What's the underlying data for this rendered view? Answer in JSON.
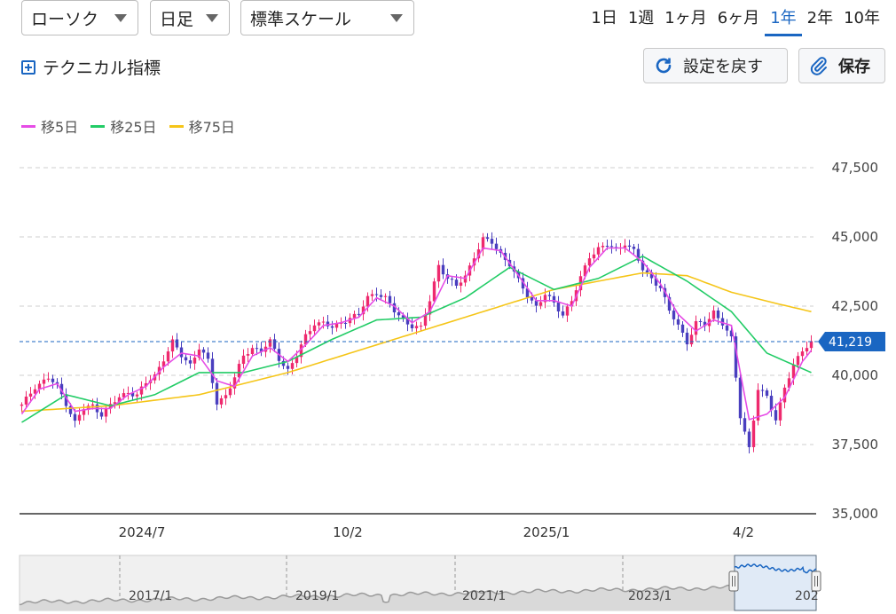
{
  "toolbar": {
    "chart_type": "ローソク",
    "period": "日足",
    "scale": "標準スケール",
    "ranges": [
      "1日",
      "1週",
      "1ヶ月",
      "6ヶ月",
      "1年",
      "2年",
      "10年"
    ],
    "active_range": "1年",
    "technical_label": "テクニカル指標",
    "reset_label": "設定を戻す",
    "save_label": "保存"
  },
  "colors": {
    "accent": "#1a66c2",
    "up": "#ee2a6e",
    "down": "#4a3fbf",
    "ma5": "#e64ce6",
    "ma25": "#22cc66",
    "ma75": "#f5c518"
  },
  "chart_data": {
    "type": "candlestick",
    "legend": [
      {
        "name": "移5日",
        "color": "#e64ce6"
      },
      {
        "name": "移25日",
        "color": "#22cc66"
      },
      {
        "name": "移75日",
        "color": "#f5c518"
      }
    ],
    "y_ticks": [
      "47,500",
      "45,000",
      "42,500",
      "40,000",
      "37,500",
      "35,000"
    ],
    "y_tick_values": [
      47500,
      45000,
      42500,
      40000,
      37500,
      35000
    ],
    "ylim": [
      35000,
      48500
    ],
    "x_ticks": [
      "2024/7",
      "10/2",
      "2025/1",
      "4/2"
    ],
    "current_value": 41219,
    "current_value_label": "41,219",
    "close_path": [
      [
        0,
        38900
      ],
      [
        3,
        39600
      ],
      [
        6,
        39900
      ],
      [
        8,
        39600
      ],
      [
        10,
        39000
      ],
      [
        12,
        38300
      ],
      [
        14,
        38800
      ],
      [
        16,
        38900
      ],
      [
        18,
        38600
      ],
      [
        20,
        38900
      ],
      [
        22,
        39200
      ],
      [
        24,
        39400
      ],
      [
        26,
        39300
      ],
      [
        28,
        39700
      ],
      [
        30,
        40000
      ],
      [
        32,
        40600
      ],
      [
        34,
        41200
      ],
      [
        36,
        40700
      ],
      [
        38,
        40400
      ],
      [
        40,
        41000
      ],
      [
        42,
        40500
      ],
      [
        44,
        39000
      ],
      [
        46,
        39300
      ],
      [
        48,
        39900
      ],
      [
        50,
        40700
      ],
      [
        52,
        41000
      ],
      [
        54,
        40900
      ],
      [
        56,
        41200
      ],
      [
        58,
        40600
      ],
      [
        60,
        40200
      ],
      [
        62,
        40700
      ],
      [
        64,
        41400
      ],
      [
        66,
        41900
      ],
      [
        68,
        41900
      ],
      [
        70,
        41700
      ],
      [
        72,
        41900
      ],
      [
        74,
        42100
      ],
      [
        76,
        42200
      ],
      [
        78,
        42800
      ],
      [
        80,
        43000
      ],
      [
        82,
        42800
      ],
      [
        84,
        42300
      ],
      [
        86,
        42000
      ],
      [
        88,
        41800
      ],
      [
        90,
        41700
      ],
      [
        92,
        42700
      ],
      [
        94,
        44000
      ],
      [
        96,
        43500
      ],
      [
        98,
        43200
      ],
      [
        100,
        43600
      ],
      [
        102,
        44300
      ],
      [
        104,
        44900
      ],
      [
        106,
        44800
      ],
      [
        108,
        44400
      ],
      [
        110,
        44000
      ],
      [
        112,
        43400
      ],
      [
        114,
        42900
      ],
      [
        116,
        42500
      ],
      [
        118,
        42900
      ],
      [
        120,
        42600
      ],
      [
        122,
        42200
      ],
      [
        124,
        42700
      ],
      [
        126,
        43500
      ],
      [
        128,
        44300
      ],
      [
        130,
        44600
      ],
      [
        132,
        44700
      ],
      [
        134,
        44500
      ],
      [
        136,
        44800
      ],
      [
        138,
        44500
      ],
      [
        140,
        43800
      ],
      [
        142,
        43500
      ],
      [
        144,
        43200
      ],
      [
        146,
        42300
      ],
      [
        148,
        41800
      ],
      [
        150,
        41200
      ],
      [
        152,
        41900
      ],
      [
        154,
        41800
      ],
      [
        156,
        42300
      ],
      [
        158,
        41900
      ],
      [
        160,
        41300
      ],
      [
        162,
        38500
      ],
      [
        164,
        37400
      ],
      [
        166,
        39500
      ],
      [
        168,
        39200
      ],
      [
        170,
        38400
      ],
      [
        172,
        39600
      ],
      [
        174,
        40300
      ],
      [
        176,
        40900
      ],
      [
        178,
        41219
      ]
    ],
    "ma5": [
      [
        0,
        38600
      ],
      [
        4,
        39500
      ],
      [
        8,
        39700
      ],
      [
        12,
        38700
      ],
      [
        16,
        38800
      ],
      [
        20,
        38800
      ],
      [
        24,
        39300
      ],
      [
        28,
        39600
      ],
      [
        32,
        40300
      ],
      [
        36,
        40800
      ],
      [
        40,
        40700
      ],
      [
        44,
        39800
      ],
      [
        48,
        39600
      ],
      [
        52,
        40700
      ],
      [
        56,
        41000
      ],
      [
        60,
        40500
      ],
      [
        64,
        41100
      ],
      [
        68,
        41800
      ],
      [
        72,
        41900
      ],
      [
        76,
        42100
      ],
      [
        80,
        42800
      ],
      [
        84,
        42500
      ],
      [
        88,
        41900
      ],
      [
        92,
        42300
      ],
      [
        96,
        43600
      ],
      [
        100,
        43500
      ],
      [
        104,
        44600
      ],
      [
        108,
        44500
      ],
      [
        112,
        43600
      ],
      [
        116,
        42700
      ],
      [
        120,
        42700
      ],
      [
        124,
        42500
      ],
      [
        128,
        43900
      ],
      [
        132,
        44600
      ],
      [
        136,
        44600
      ],
      [
        140,
        44100
      ],
      [
        144,
        43300
      ],
      [
        148,
        42200
      ],
      [
        152,
        41600
      ],
      [
        156,
        42000
      ],
      [
        160,
        41800
      ],
      [
        164,
        38400
      ],
      [
        168,
        38600
      ],
      [
        172,
        39200
      ],
      [
        176,
        40500
      ],
      [
        178,
        40900
      ]
    ],
    "ma25": [
      [
        0,
        38300
      ],
      [
        10,
        39300
      ],
      [
        20,
        38900
      ],
      [
        30,
        39300
      ],
      [
        40,
        40100
      ],
      [
        50,
        40100
      ],
      [
        60,
        40500
      ],
      [
        70,
        41300
      ],
      [
        80,
        42000
      ],
      [
        90,
        42100
      ],
      [
        100,
        42800
      ],
      [
        110,
        43900
      ],
      [
        120,
        43100
      ],
      [
        130,
        43500
      ],
      [
        140,
        44300
      ],
      [
        150,
        43400
      ],
      [
        160,
        42300
      ],
      [
        168,
        40800
      ],
      [
        178,
        40100
      ]
    ],
    "ma75": [
      [
        0,
        38700
      ],
      [
        20,
        38900
      ],
      [
        40,
        39300
      ],
      [
        60,
        40100
      ],
      [
        80,
        41100
      ],
      [
        100,
        42100
      ],
      [
        120,
        43100
      ],
      [
        140,
        43700
      ],
      [
        150,
        43600
      ],
      [
        160,
        43000
      ],
      [
        170,
        42600
      ],
      [
        178,
        42300
      ]
    ],
    "navigator_x_ticks": [
      "2017/1",
      "2019/1",
      "2021/1",
      "2023/1",
      "202"
    ]
  }
}
